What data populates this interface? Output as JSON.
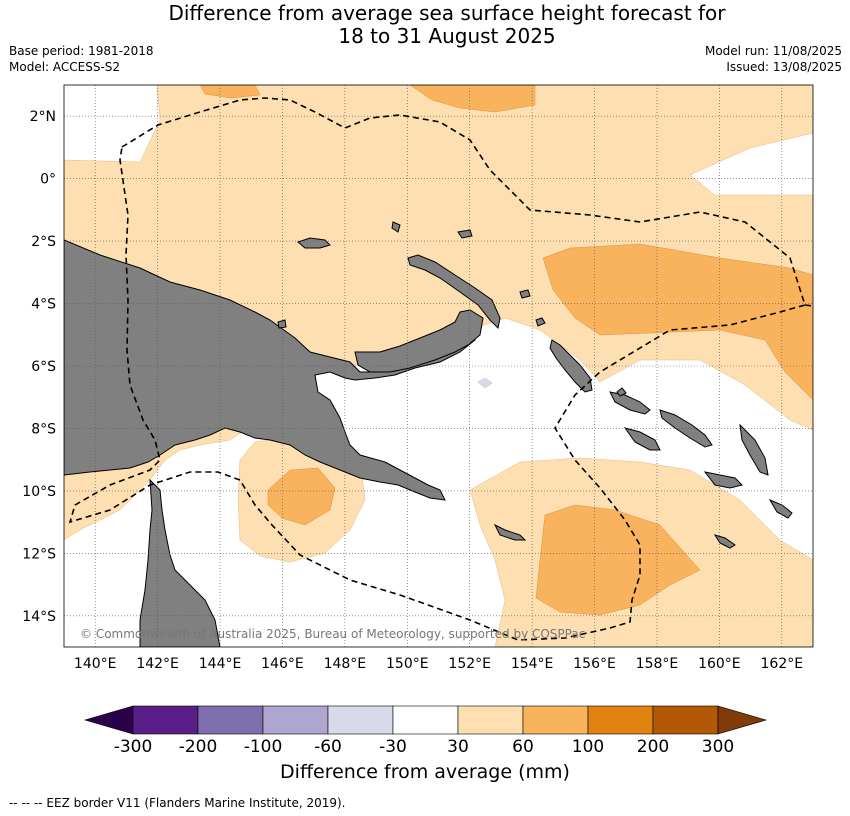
{
  "title_line1": "Difference from average sea surface height forecast for",
  "title_line2": "18 to 31 August 2025",
  "base_period": "Base period: 1981-2018",
  "model": "Model: ACCESS-S2",
  "model_run": "Model run: 11/08/2025",
  "issued": "Issued: 13/08/2025",
  "copyright": "© Commonwealth of Australia 2025, Bureau of Meteorology, supported by COSPPac",
  "footnote": "-- -- -- EEZ border V11 (Flanders Marine Institute, 2019).",
  "map": {
    "lon_range": [
      139,
      163
    ],
    "lat_range": [
      -15,
      3
    ],
    "lon_ticks": [
      "140°E",
      "142°E",
      "144°E",
      "146°E",
      "148°E",
      "150°E",
      "152°E",
      "154°E",
      "156°E",
      "158°E",
      "160°E",
      "162°E"
    ],
    "lat_ticks": [
      "2°N",
      "0°",
      "2°S",
      "4°S",
      "6°S",
      "8°S",
      "10°S",
      "12°S",
      "14°S"
    ],
    "land_color": "#808080",
    "eez_style": "dashed black"
  },
  "colorbar": {
    "label": "Difference from average (mm)",
    "tick_labels": [
      "-300",
      "-200",
      "-100",
      "-60",
      "-30",
      "30",
      "60",
      "100",
      "200",
      "300"
    ],
    "bins": [
      {
        "color": "#591e89"
      },
      {
        "color": "#7f6ead"
      },
      {
        "color": "#afa5d1"
      },
      {
        "color": "#d8d9ea"
      },
      {
        "color": "#ffffff"
      },
      {
        "color": "#fddfb1"
      },
      {
        "color": "#f9b35c"
      },
      {
        "color": "#e0820f"
      },
      {
        "color": "#b35806"
      }
    ],
    "low_extend_color": "#2d004b",
    "high_extend_color": "#7f3b08"
  }
}
